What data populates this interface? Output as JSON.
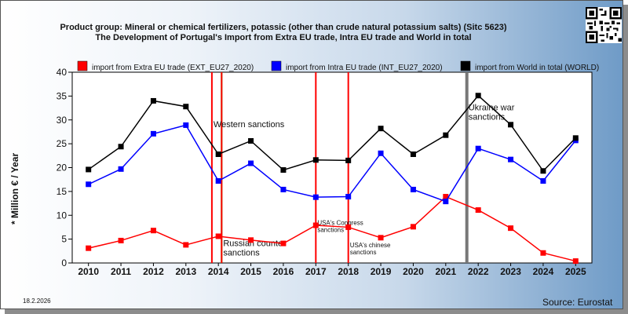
{
  "header": {
    "title_line1": "Product group: Mineral or chemical fertilizers, potassic (other than crude natural potassium salts) (Sitc 5623)",
    "title_line2": "The Development of Portugal's Import from Extra EU trade, Intra EU trade and World in total"
  },
  "footer": {
    "date": "18.2.2026",
    "source": "Source: Eurostat"
  },
  "chart_data": {
    "type": "line",
    "ylabel": "* Million € / Year",
    "ylim": [
      0,
      40
    ],
    "yticks": [
      0,
      5,
      10,
      15,
      20,
      25,
      30,
      35,
      40
    ],
    "categories": [
      "2010",
      "2011",
      "2012",
      "2013",
      "2014",
      "2015",
      "2016",
      "2017",
      "2018",
      "2019",
      "2020",
      "2021",
      "2022",
      "2023",
      "2024",
      "2025"
    ],
    "series": [
      {
        "name": "import from Extra EU trade (EXT_EU27_2020)",
        "color": "#ff0000",
        "values": [
          3.1,
          4.7,
          6.8,
          3.8,
          5.6,
          4.8,
          4.1,
          7.9,
          7.5,
          5.3,
          7.6,
          13.9,
          11.1,
          7.3,
          2.1,
          0.4
        ]
      },
      {
        "name": "import from Intra EU trade (INT_EU27_2020)",
        "color": "#0000ff",
        "values": [
          16.5,
          19.7,
          27.1,
          28.9,
          17.2,
          20.9,
          15.4,
          13.8,
          13.9,
          23.0,
          15.4,
          12.9,
          24.0,
          21.7,
          17.2,
          25.7
        ]
      },
      {
        "name": "import from World in total (WORLD)",
        "color": "#000000",
        "values": [
          19.6,
          24.4,
          34.0,
          32.8,
          22.8,
          25.6,
          19.5,
          21.6,
          21.5,
          28.2,
          22.8,
          26.8,
          35.1,
          29.0,
          19.3,
          26.2
        ]
      }
    ],
    "events": [
      {
        "label": "Western sanctions",
        "color": "#ff0000",
        "pos": 3.8,
        "y": 28.5
      },
      {
        "label": "",
        "color": "#00dd00",
        "pos": 4.1,
        "y": 0
      },
      {
        "label": "Russian counter sanctions",
        "color": "#ff0000",
        "pos": 4.1,
        "y": 3.5
      },
      {
        "label": "USA's Congress sanctions",
        "color": "#ff0000",
        "pos": 7.0,
        "y": 8.0
      },
      {
        "label": "USA's chinese sanctions",
        "color": "#ff0000",
        "pos": 8.0,
        "y": 3.3
      },
      {
        "label": "Ukraine war sanctions",
        "color": "#777777",
        "pos": 11.65,
        "y": 32.0
      }
    ],
    "grid": false,
    "legend": "top"
  }
}
